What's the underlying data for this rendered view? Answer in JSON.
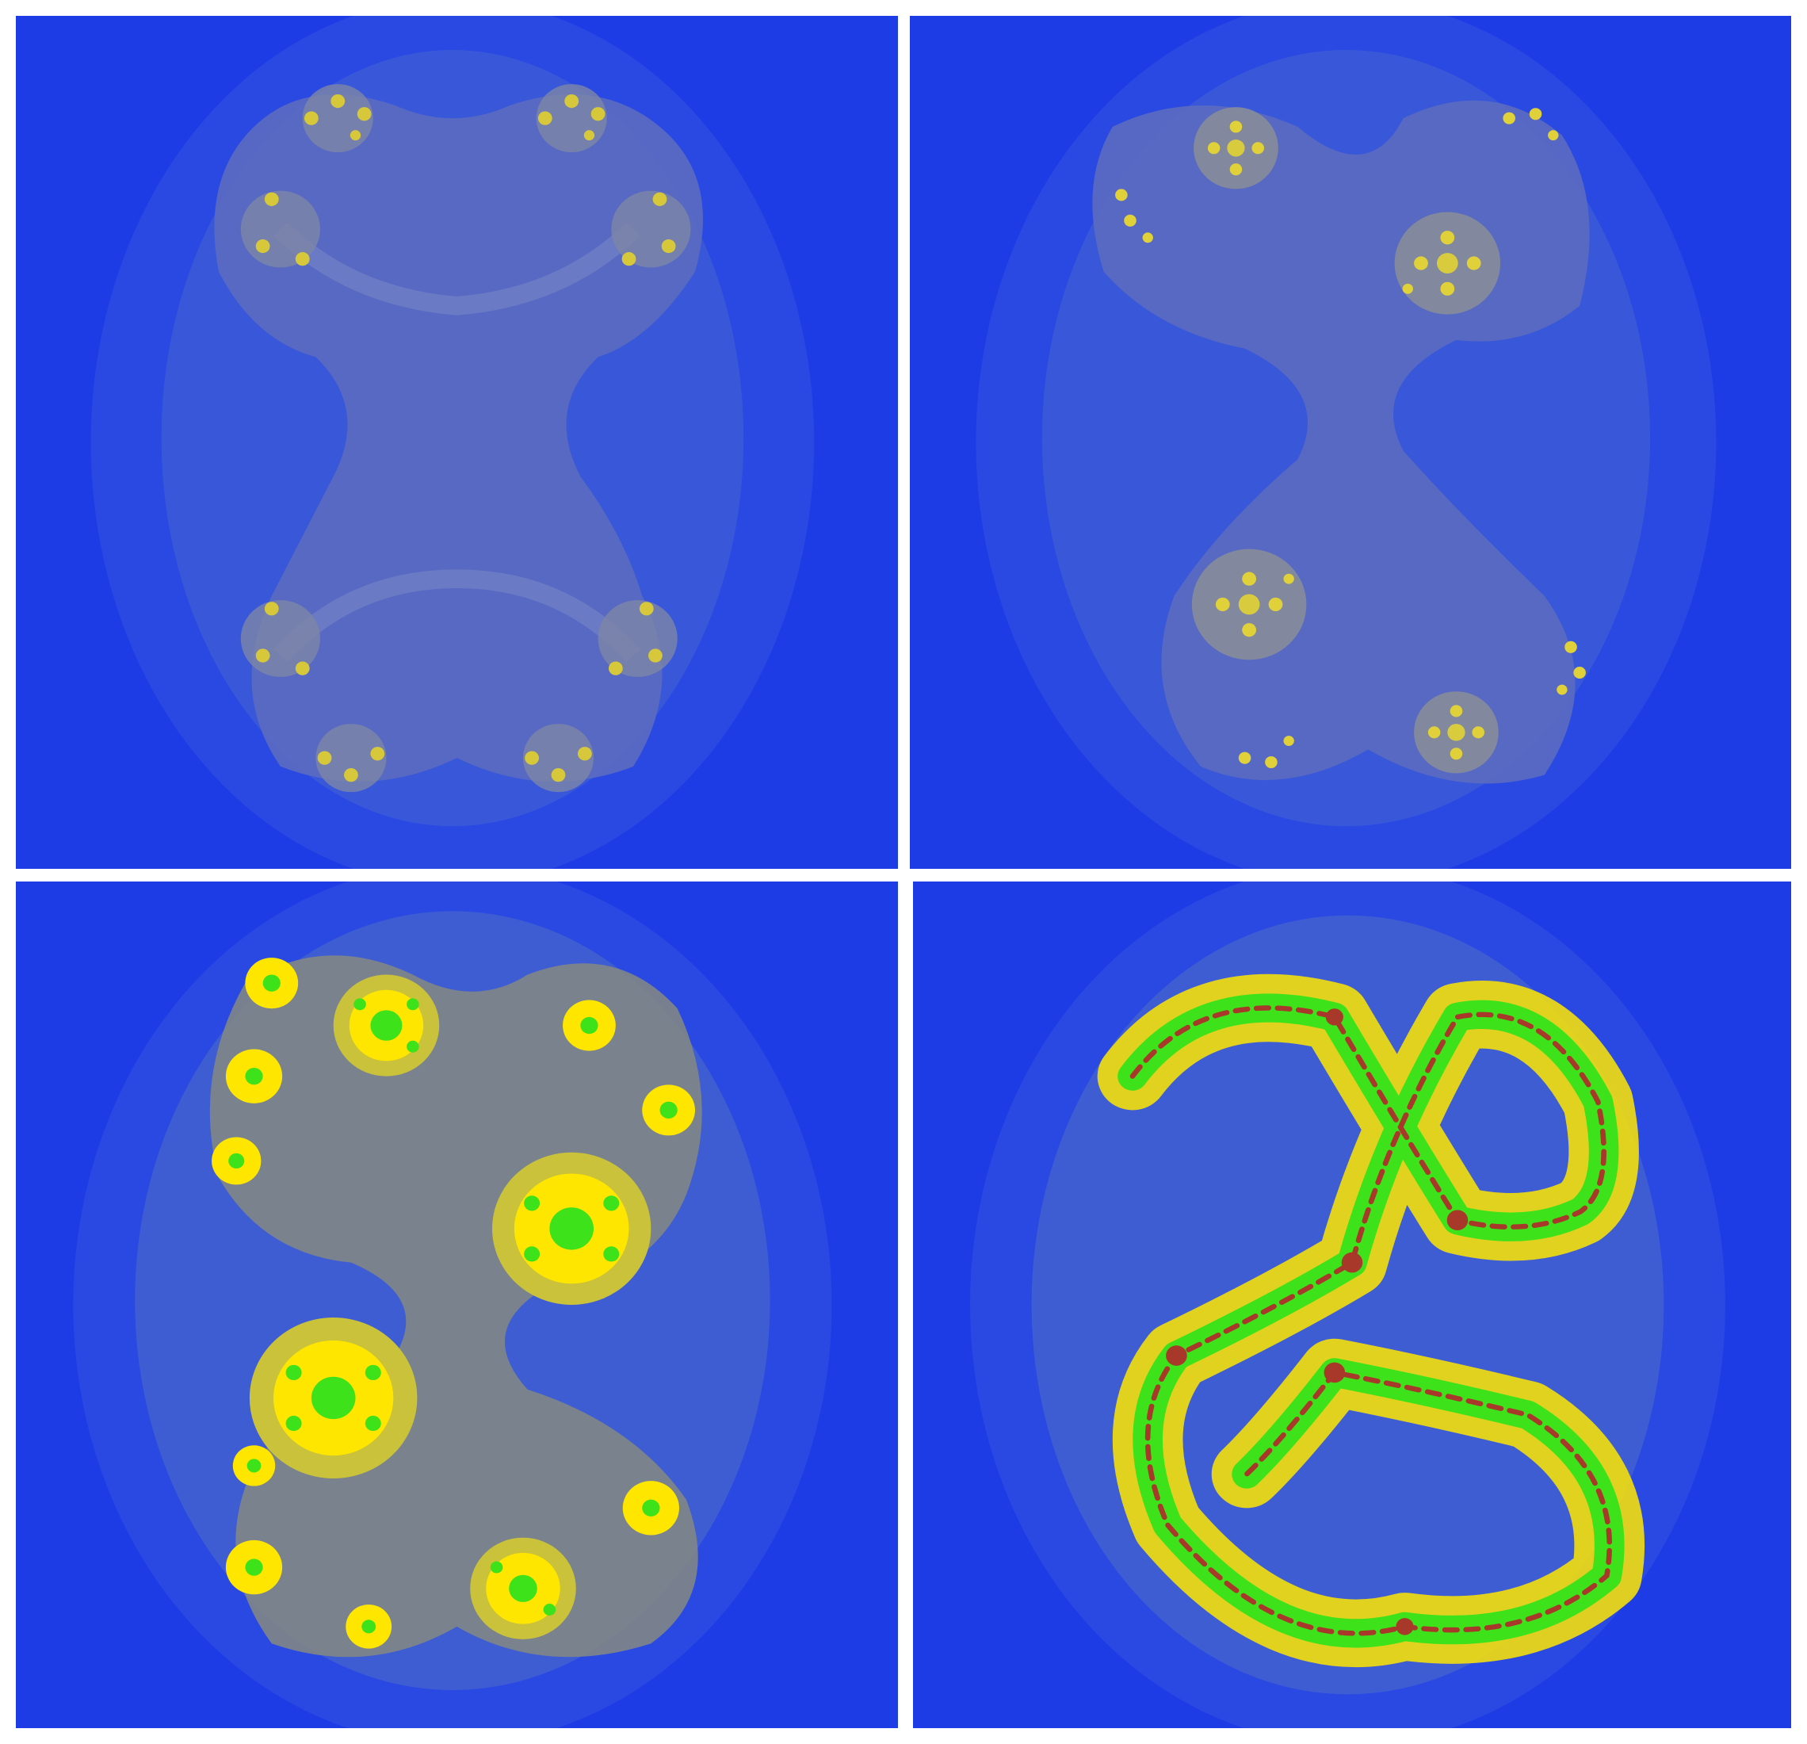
{
  "image": {
    "description_free": true,
    "panels": [
      {
        "id": "julia-panel-1",
        "variant": "faint",
        "background": "#1d3ce6",
        "halo": "#4a6ad0",
        "body": "#6272b4",
        "dot": "#d6c83a",
        "core": "#c9c23c"
      },
      {
        "id": "julia-panel-2",
        "variant": "faint-twisted",
        "background": "#1d3ce6",
        "halo": "#4a6ad0",
        "body": "#6272b4",
        "dot": "#e0d13a",
        "core": "#d8cc3e"
      },
      {
        "id": "julia-panel-3",
        "variant": "bright-blobs",
        "background": "#1d3ce6",
        "halo": "#4a6ad0",
        "body": "#8a8f82",
        "dot": "#ffe600",
        "core": "#3ee21a"
      },
      {
        "id": "julia-panel-4",
        "variant": "dendrite",
        "background": "#1d3ce6",
        "halo": "#4a6ad0",
        "body": "#9aa87a",
        "dot": "#ffe600",
        "core": "#3ee21a"
      }
    ]
  }
}
